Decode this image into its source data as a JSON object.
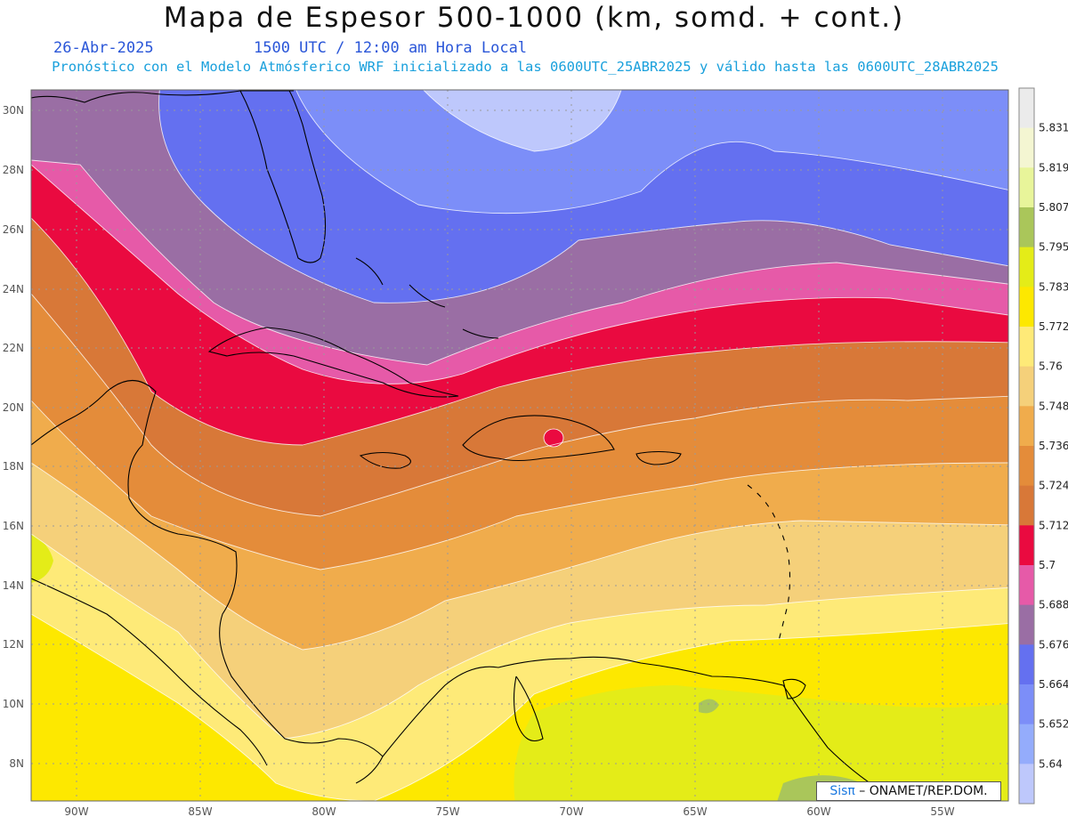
{
  "header": {
    "title": "Mapa de Espesor 500-1000 (km, somd. + cont.)",
    "date": "26-Abr-2025",
    "time": "1500 UTC / 12:00 am Hora Local",
    "forecast": "Pronóstico con el Modelo Atmósferico WRF inicializado a las 0600UTC_25ABR2025 y válido hasta las  0600UTC_28ABR2025"
  },
  "axes": {
    "lat_labels": [
      "30N",
      "28N",
      "26N",
      "24N",
      "22N",
      "20N",
      "18N",
      "16N",
      "14N",
      "12N",
      "10N",
      "8N"
    ],
    "lon_labels": [
      "90W",
      "85W",
      "80W",
      "75W",
      "70W",
      "65W",
      "60W",
      "55W"
    ]
  },
  "legend": {
    "levels": [
      "5.831",
      "5.819",
      "5.807",
      "5.795",
      "5.783",
      "5.772",
      "5.76",
      "5.748",
      "5.736",
      "5.724",
      "5.712",
      "5.7",
      "5.688",
      "5.676",
      "5.664",
      "5.652",
      "5.64"
    ],
    "colors": [
      "#ebebeb",
      "#f4f6d2",
      "#e8f59a",
      "#aac65a",
      "#e4ec18",
      "#fde800",
      "#feea78",
      "#f5d07a",
      "#f0ac4c",
      "#e48c3a",
      "#d87838",
      "#ea0a40",
      "#e65aa8",
      "#9a6ea4",
      "#6470f0",
      "#7c8ef8",
      "#94acfc",
      "#bec8fc"
    ]
  },
  "credit": {
    "brand": "Sisπ",
    "org": " – ONAMET/REP.DOM."
  }
}
